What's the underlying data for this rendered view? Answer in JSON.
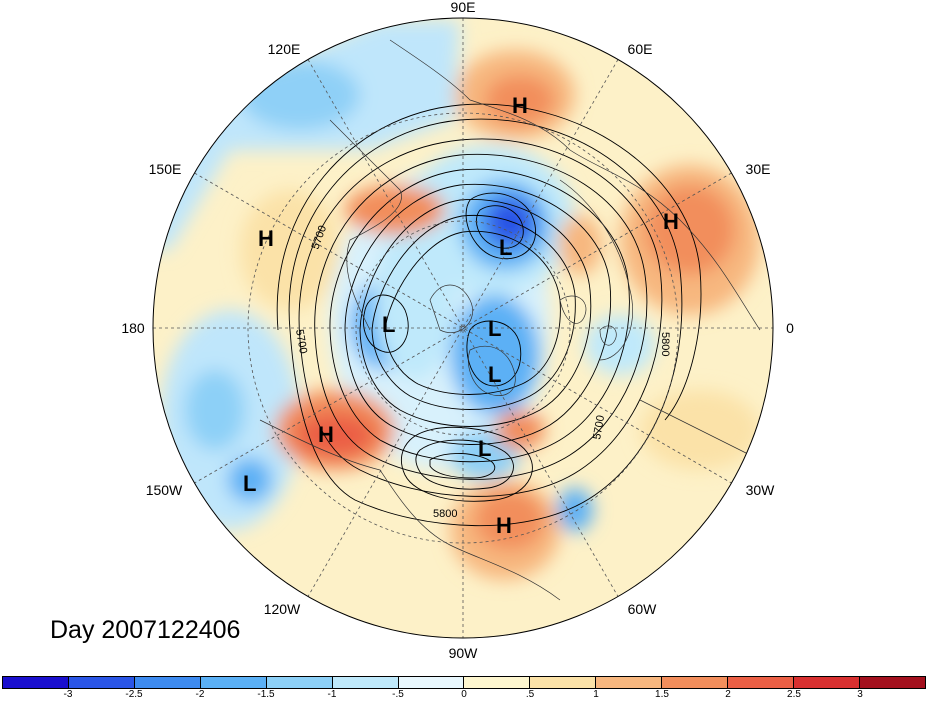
{
  "title": "Day 2007122406",
  "lon_labels": {
    "e90": "90E",
    "e60": "60E",
    "e30": "30E",
    "zero": "0",
    "w30": "30W",
    "w60": "60W",
    "w90": "90W",
    "w120": "120W",
    "w150": "150W",
    "e180": "180",
    "e150": "150E",
    "e120": "120E"
  },
  "contour_labels": {
    "c5700a": "5700",
    "c5700b": "5700",
    "c5700c": "5700",
    "c5800a": "5800",
    "c5800b": "5800"
  },
  "centers": {
    "h1": "H",
    "h2": "H",
    "h3": "H",
    "h4": "H",
    "h5": "H",
    "l1": "L",
    "l2": "L",
    "l3": "L",
    "l4": "L",
    "l5": "L",
    "l6": "L"
  },
  "colorbar": {
    "colors": [
      "#1a0fcf",
      "#2a55e6",
      "#3d8bf0",
      "#5bb0f5",
      "#8dd0f7",
      "#bfe9fb",
      "#e8f7fd",
      "#fdf6cf",
      "#fbe2a8",
      "#f7b77f",
      "#f28e5c",
      "#eb5f45",
      "#d83030",
      "#a3101d"
    ],
    "ticks": [
      "-3",
      "-2.5",
      "-2",
      "-1.5",
      "-1",
      "-.5",
      "0",
      ".5",
      "1",
      "1.5",
      "2",
      "2.5",
      "3"
    ]
  }
}
